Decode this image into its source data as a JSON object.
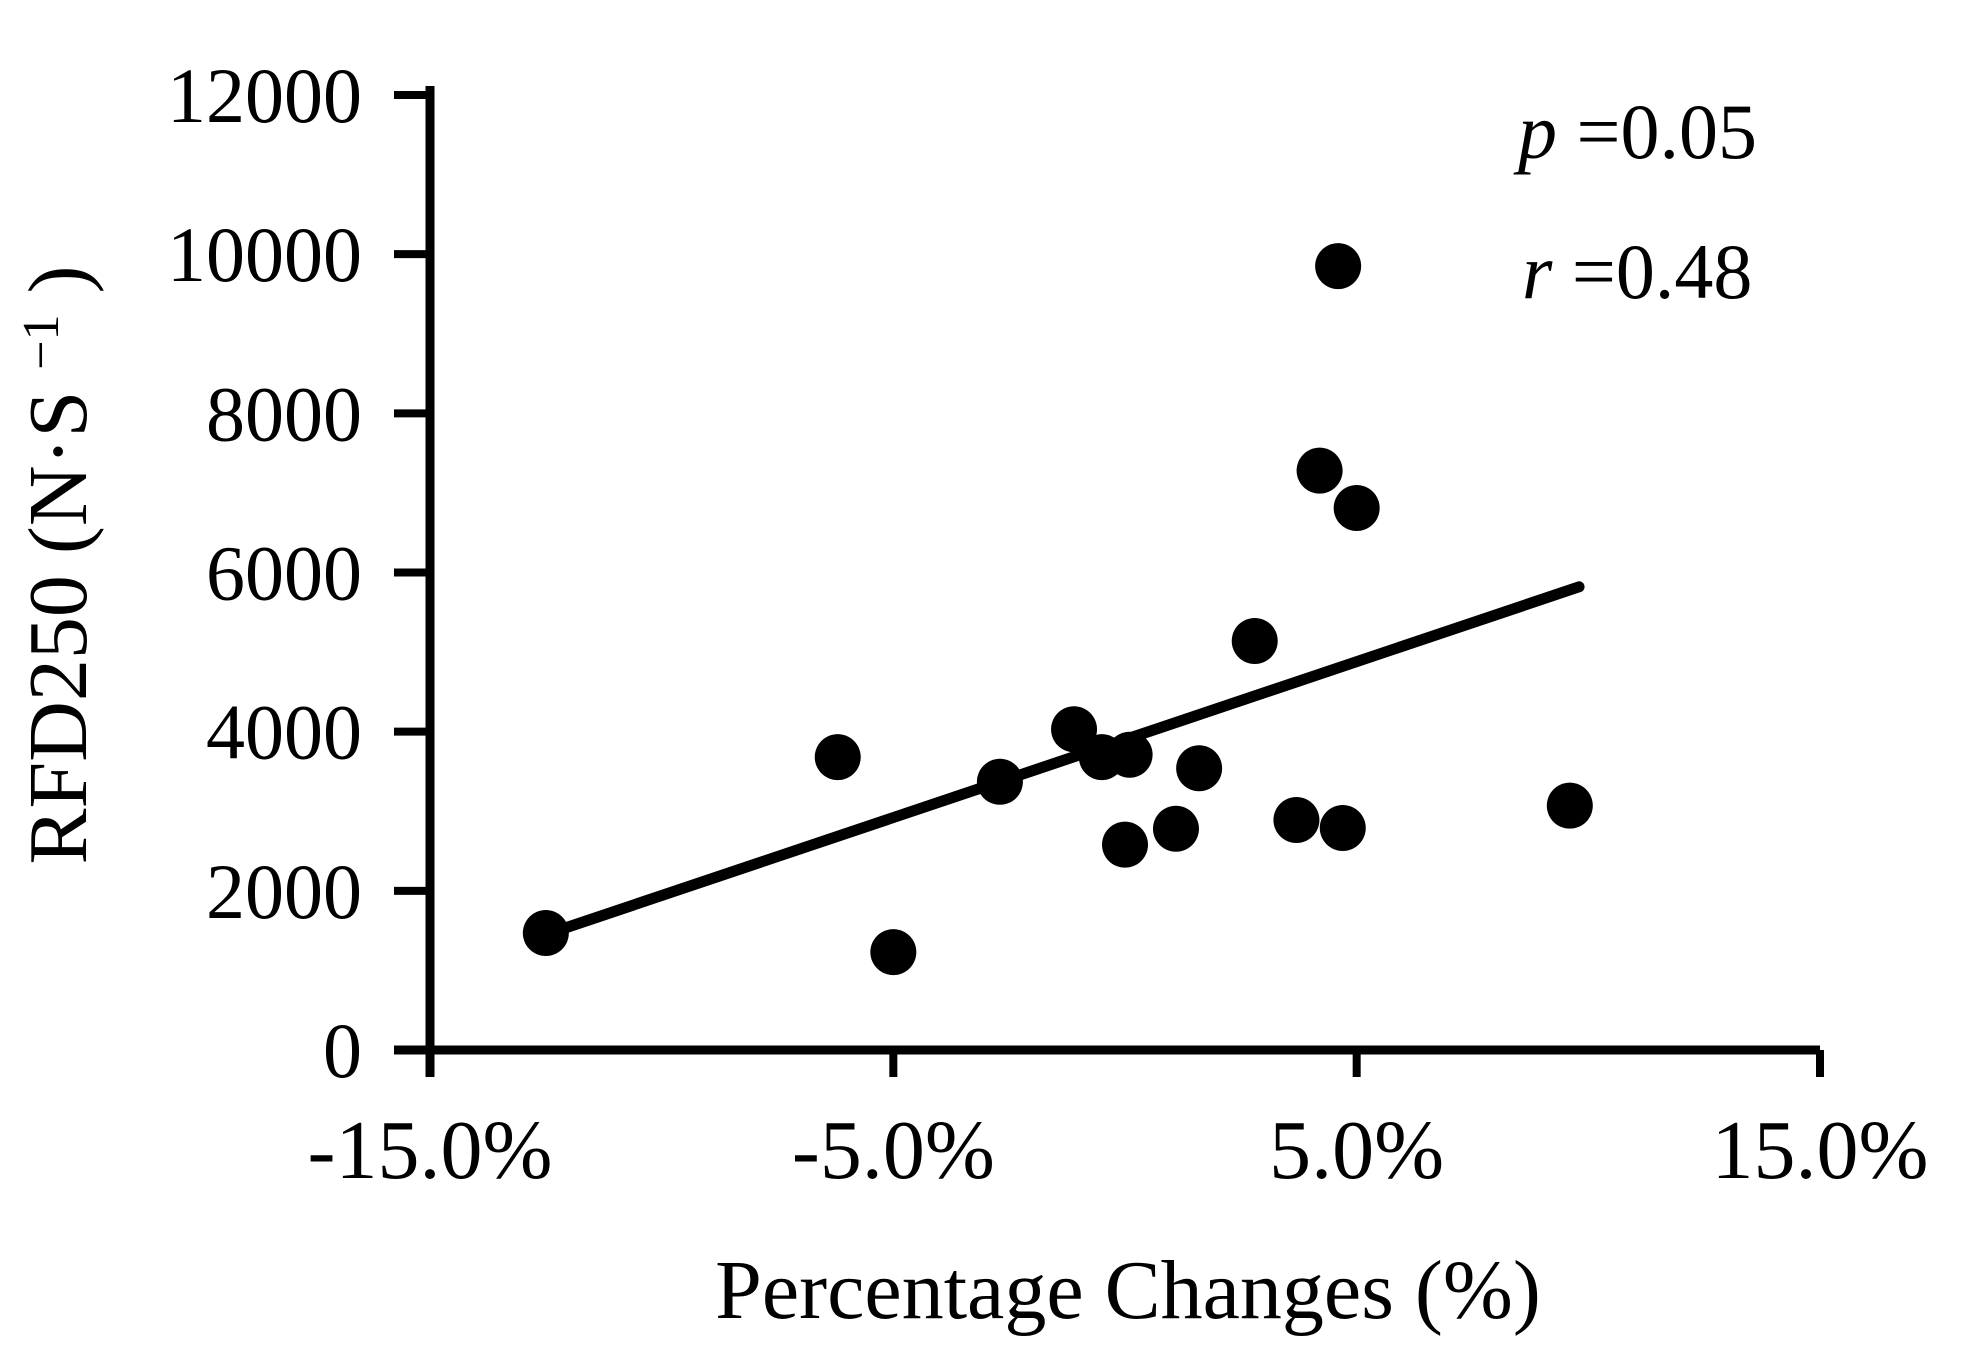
{
  "chart_data": {
    "type": "scatter",
    "title": "",
    "xlabel": "Percentage Changes (%)",
    "ylabel_prefix": "RFD250 (N·S",
    "ylabel_sup": "−1",
    "ylabel_suffix": ")",
    "xlim": [
      -15,
      15
    ],
    "ylim": [
      0,
      12000
    ],
    "grid": false,
    "legend": "none",
    "background_color": "#ffffff",
    "axis_color": "#000000",
    "point_color": "#000000",
    "trendline_color": "#000000",
    "x_ticks": [
      {
        "value": -15,
        "label": "-15.0%"
      },
      {
        "value": -5,
        "label": "-5.0%"
      },
      {
        "value": 5,
        "label": "5.0%"
      },
      {
        "value": 15,
        "label": "15.0%"
      }
    ],
    "y_ticks": [
      {
        "value": 0,
        "label": "0"
      },
      {
        "value": 2000,
        "label": "2000"
      },
      {
        "value": 4000,
        "label": "4000"
      },
      {
        "value": 6000,
        "label": "6000"
      },
      {
        "value": 8000,
        "label": "8000"
      },
      {
        "value": 10000,
        "label": "10000"
      },
      {
        "value": 12000,
        "label": "12000"
      }
    ],
    "points": [
      {
        "x": -12.5,
        "y": 1470
      },
      {
        "x": -6.2,
        "y": 3680
      },
      {
        "x": -5.0,
        "y": 1230
      },
      {
        "x": -2.7,
        "y": 3370
      },
      {
        "x": -1.1,
        "y": 4030
      },
      {
        "x": -0.5,
        "y": 3680
      },
      {
        "x": 0.1,
        "y": 3710
      },
      {
        "x": 0.0,
        "y": 2580
      },
      {
        "x": 1.1,
        "y": 2780
      },
      {
        "x": 1.6,
        "y": 3540
      },
      {
        "x": 2.8,
        "y": 5140
      },
      {
        "x": 3.7,
        "y": 2890
      },
      {
        "x": 4.2,
        "y": 7280
      },
      {
        "x": 4.6,
        "y": 9850
      },
      {
        "x": 4.7,
        "y": 2790
      },
      {
        "x": 5.0,
        "y": 6810
      },
      {
        "x": 9.6,
        "y": 3070
      }
    ],
    "trendline": {
      "x1": -12.1,
      "y1": 1530,
      "x2": 9.8,
      "y2": 5820
    },
    "annotations": [
      {
        "symbol": "p",
        "rest": "=0.05"
      },
      {
        "symbol": "r",
        "rest": "=0.48"
      }
    ]
  }
}
